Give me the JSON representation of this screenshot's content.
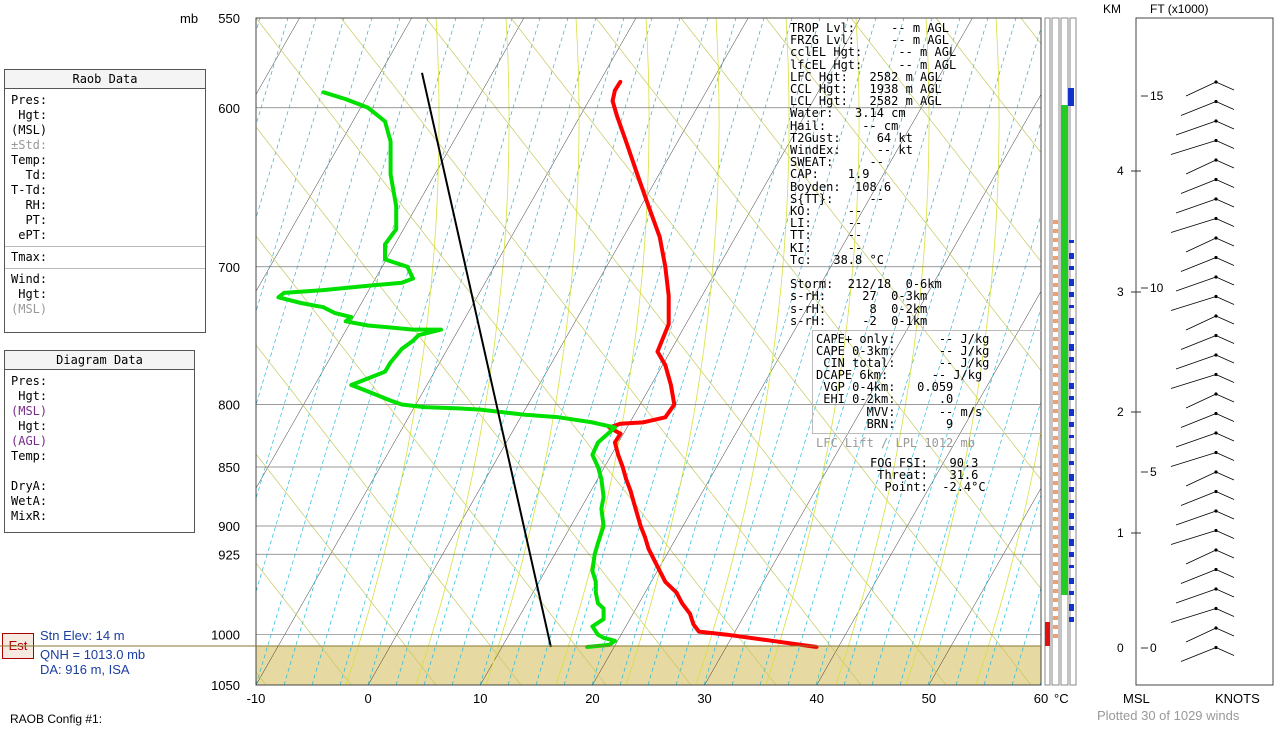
{
  "units": {
    "pressure": "mb",
    "temp": "°C",
    "km": "KM",
    "ft": "FT (x1000)",
    "msl": "MSL",
    "knots": "KNOTS"
  },
  "raob_panel": {
    "title": "Raob Data",
    "rows": [
      "Pres:",
      " Hgt:",
      "(MSL)",
      "±Std:",
      "Temp:",
      "  Td:",
      "T-Td:",
      "  RH:",
      "  PT:",
      " ePT:"
    ],
    "tmax": "Tmax:",
    "wind_rows": [
      "Wind:",
      " Hgt:",
      "(MSL)"
    ]
  },
  "diagram_panel": {
    "title": "Diagram Data",
    "rows": [
      "Pres:",
      " Hgt:",
      "(MSL)",
      " Hgt:",
      "(AGL)",
      "Temp:"
    ],
    "rows2": [
      "DryA:",
      "WetA:",
      "MixR:"
    ]
  },
  "station": {
    "est": "Est",
    "elev": "Stn Elev: 14 m",
    "qnh": "QNH = 1013.0 mb",
    "da": "DA: 916 m, ISA"
  },
  "config_label": "RAOB Config #1:",
  "plotted_label": "Plotted 30 of 1029 winds",
  "indices": [
    "TROP Lvl:     -- m AGL",
    "FRZG Lvl:     -- m AGL",
    "cclEL Hgt:     -- m AGL",
    "lfcEL Hgt:     -- m AGL",
    "LFC Hgt:   2582 m AGL",
    "CCL Hgt:   1938 m AGL",
    "LCL Hgt:   2582 m AGL",
    "Water:   3.14 cm",
    "Hail:     -- cm",
    "T2Gust:     64 kt",
    "WindEx:     -- kt",
    "SWEAT:     --",
    "CAP:    1.9",
    "Boyden:  108.6",
    "S{TT}:     --",
    "KO:     --",
    "LI:     --",
    "TT:     --",
    "KI:     --",
    "Tc:   38.8 °C",
    "",
    "Storm:  212/18  0-6km",
    "s-rH:     27  0-3km",
    "s-rH:      8  0-2km",
    "s-rH:     -2  0-1km"
  ],
  "lift_indices": [
    "CAPE+ only:      -- J/kg",
    "CAPE 0-3km:      -- J/kg",
    " CIN total:      -- J/kg",
    "DCAPE 6km:      -- J/kg",
    " VGP 0-4km:   0.059",
    " EHI 0-2km:      .0",
    "       MVV:      -- m/s",
    "       BRN:       9"
  ],
  "lift_title": "LFC Lift / LPL 1012 mb",
  "fog": [
    "FOG FSI:   90.3",
    " Threat:   31.6",
    "  Point:  -2.4°C"
  ],
  "chart_data": {
    "type": "line",
    "title": "",
    "xlabel": "°C",
    "ylabel": "mb",
    "x_ticks": [
      -10,
      0,
      10,
      20,
      30,
      40,
      50,
      60
    ],
    "y_ticks": [
      550,
      600,
      700,
      800,
      850,
      900,
      925,
      1000,
      1050
    ],
    "xlim": [
      -10,
      60
    ],
    "ylim": [
      1050,
      550
    ],
    "y_scale": "log-pressure",
    "surface_pressure": 1012,
    "series": [
      {
        "name": "",
        "color": "#ff0000",
        "points": [
          [
            40,
            1012
          ],
          [
            36,
            1006
          ],
          [
            32,
            1000
          ],
          [
            29.5,
            997
          ],
          [
            29,
            990
          ],
          [
            28.7,
            980
          ],
          [
            28,
            970
          ],
          [
            27.5,
            960
          ],
          [
            26.5,
            950
          ],
          [
            26,
            940
          ],
          [
            25.5,
            930
          ],
          [
            25,
            920
          ],
          [
            24.7,
            910
          ],
          [
            24.3,
            900
          ],
          [
            24,
            890
          ],
          [
            23.7,
            880
          ],
          [
            23.4,
            870
          ],
          [
            23,
            860
          ],
          [
            22.7,
            850
          ],
          [
            22.3,
            840
          ],
          [
            22,
            830
          ],
          [
            22.5,
            823
          ],
          [
            21.5,
            818
          ],
          [
            22.5,
            815
          ],
          [
            24.5,
            814
          ],
          [
            26.5,
            810
          ],
          [
            27.3,
            800
          ],
          [
            27,
            785
          ],
          [
            26.5,
            770
          ],
          [
            25.8,
            760
          ],
          [
            26.3,
            750
          ],
          [
            26.8,
            740
          ],
          [
            26.8,
            720
          ],
          [
            26.5,
            700
          ],
          [
            26,
            680
          ],
          [
            25,
            660
          ],
          [
            24,
            640
          ],
          [
            23,
            620
          ],
          [
            22.2,
            605
          ],
          [
            21.8,
            596
          ],
          [
            22,
            590
          ],
          [
            22.5,
            585
          ]
        ]
      },
      {
        "name": "",
        "color": "#00e000",
        "points": [
          [
            19.5,
            1012
          ],
          [
            21.5,
            1010
          ],
          [
            22,
            1006
          ],
          [
            21,
            1003
          ],
          [
            20.5,
            1000
          ],
          [
            20,
            992
          ],
          [
            21,
            985
          ],
          [
            21,
            975
          ],
          [
            20.5,
            970
          ],
          [
            20.3,
            960
          ],
          [
            20.3,
            950
          ],
          [
            20,
            940
          ],
          [
            20.2,
            925
          ],
          [
            20.5,
            915
          ],
          [
            21,
            900
          ],
          [
            20.8,
            885
          ],
          [
            21,
            875
          ],
          [
            20.8,
            860
          ],
          [
            20.5,
            850
          ],
          [
            20,
            840
          ],
          [
            20.5,
            830
          ],
          [
            21.5,
            822
          ],
          [
            22,
            818
          ],
          [
            20,
            814
          ],
          [
            17,
            810
          ],
          [
            14,
            808
          ],
          [
            12,
            806
          ],
          [
            10,
            804
          ],
          [
            8,
            803
          ],
          [
            5,
            802
          ],
          [
            3,
            800
          ],
          [
            2,
            797
          ],
          [
            0,
            790
          ],
          [
            -1.5,
            785
          ],
          [
            0,
            780
          ],
          [
            1.5,
            775
          ],
          [
            2,
            768
          ],
          [
            3,
            758
          ],
          [
            4,
            752
          ],
          [
            4.5,
            748
          ],
          [
            6.5,
            744
          ],
          [
            4,
            744
          ],
          [
            0,
            741
          ],
          [
            -2,
            738
          ],
          [
            -1.5,
            735
          ],
          [
            -3,
            732
          ],
          [
            -4,
            728
          ],
          [
            -6,
            725
          ],
          [
            -8,
            721
          ],
          [
            -7.5,
            718
          ],
          [
            -4,
            716
          ],
          [
            0,
            713
          ],
          [
            3,
            711
          ],
          [
            4,
            708
          ],
          [
            3.5,
            700
          ],
          [
            1.5,
            695
          ],
          [
            1.5,
            685
          ],
          [
            2.5,
            675
          ],
          [
            2.5,
            660
          ],
          [
            2,
            640
          ],
          [
            2,
            620
          ],
          [
            1.5,
            608
          ],
          [
            0,
            600
          ],
          [
            -2,
            595
          ],
          [
            -4,
            591
          ]
        ]
      },
      {
        "name": "",
        "color": "#000000",
        "points": [
          [
            4.8,
            580
          ],
          [
            16.3,
            1012
          ]
        ]
      }
    ]
  }
}
